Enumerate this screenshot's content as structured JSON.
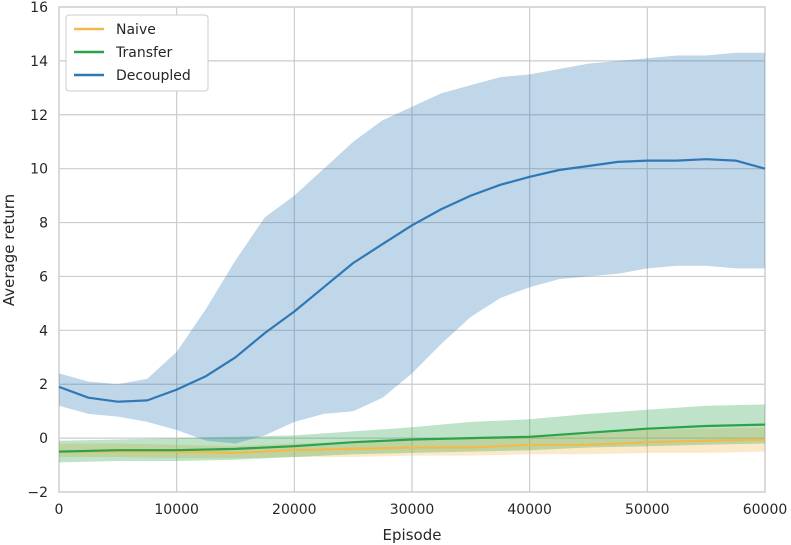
{
  "chart_data": {
    "type": "line",
    "xlabel": "Episode",
    "ylabel": "Average return",
    "xlim": [
      0,
      60000
    ],
    "ylim": [
      -2,
      16
    ],
    "x_ticks": [
      0,
      10000,
      20000,
      30000,
      40000,
      50000,
      60000
    ],
    "x_tick_labels": [
      "0",
      "10000",
      "20000",
      "30000",
      "40000",
      "50000",
      "60000"
    ],
    "y_ticks": [
      -2,
      0,
      2,
      4,
      6,
      8,
      10,
      12,
      14,
      16
    ],
    "y_tick_labels": [
      "−2",
      "0",
      "2",
      "4",
      "6",
      "8",
      "10",
      "12",
      "14",
      "16"
    ],
    "grid": true,
    "legend_position": "top-left",
    "series": [
      {
        "name": "Naive",
        "color": "#f3b94c",
        "x": [
          0,
          5000,
          10000,
          15000,
          20000,
          25000,
          30000,
          35000,
          40000,
          45000,
          50000,
          55000,
          60000
        ],
        "values": [
          -0.5,
          -0.5,
          -0.5,
          -0.55,
          -0.45,
          -0.4,
          -0.35,
          -0.35,
          -0.25,
          -0.25,
          -0.15,
          -0.1,
          -0.05
        ],
        "lower": [
          -0.7,
          -0.7,
          -0.75,
          -0.75,
          -0.7,
          -0.7,
          -0.65,
          -0.65,
          -0.6,
          -0.6,
          -0.55,
          -0.55,
          -0.5
        ],
        "upper": [
          -0.2,
          -0.2,
          -0.25,
          -0.3,
          -0.2,
          -0.15,
          -0.05,
          0.0,
          0.1,
          0.15,
          0.3,
          0.35,
          0.4
        ]
      },
      {
        "name": "Transfer",
        "color": "#2ca24a",
        "x": [
          0,
          5000,
          10000,
          15000,
          20000,
          25000,
          30000,
          35000,
          40000,
          45000,
          50000,
          55000,
          60000
        ],
        "values": [
          -0.5,
          -0.45,
          -0.45,
          -0.4,
          -0.3,
          -0.15,
          -0.05,
          0.0,
          0.05,
          0.2,
          0.35,
          0.45,
          0.5
        ],
        "lower": [
          -0.9,
          -0.85,
          -0.85,
          -0.8,
          -0.7,
          -0.6,
          -0.55,
          -0.5,
          -0.45,
          -0.35,
          -0.3,
          -0.25,
          -0.2
        ],
        "upper": [
          -0.1,
          -0.05,
          0.0,
          0.05,
          0.1,
          0.25,
          0.4,
          0.6,
          0.7,
          0.9,
          1.05,
          1.2,
          1.25
        ]
      },
      {
        "name": "Decoupled",
        "color": "#2f78b5",
        "x": [
          0,
          2500,
          5000,
          7500,
          10000,
          12500,
          15000,
          17500,
          20000,
          22500,
          25000,
          27500,
          30000,
          32500,
          35000,
          37500,
          40000,
          42500,
          45000,
          47500,
          50000,
          52500,
          55000,
          57500,
          60000
        ],
        "values": [
          1.9,
          1.5,
          1.35,
          1.4,
          1.8,
          2.3,
          3.0,
          3.9,
          4.7,
          5.6,
          6.5,
          7.2,
          7.9,
          8.5,
          9.0,
          9.4,
          9.7,
          9.95,
          10.1,
          10.25,
          10.3,
          10.3,
          10.35,
          10.3,
          10.0
        ],
        "lower": [
          1.2,
          0.9,
          0.8,
          0.6,
          0.3,
          -0.1,
          -0.2,
          0.1,
          0.6,
          0.9,
          1.0,
          1.5,
          2.4,
          3.5,
          4.5,
          5.2,
          5.6,
          5.9,
          6.0,
          6.1,
          6.3,
          6.4,
          6.4,
          6.3,
          6.3
        ],
        "upper": [
          2.4,
          2.1,
          2.0,
          2.2,
          3.2,
          4.8,
          6.6,
          8.2,
          9.0,
          10.0,
          11.0,
          11.8,
          12.3,
          12.8,
          13.1,
          13.4,
          13.5,
          13.7,
          13.9,
          14.0,
          14.1,
          14.2,
          14.2,
          14.3,
          14.3
        ]
      }
    ]
  }
}
